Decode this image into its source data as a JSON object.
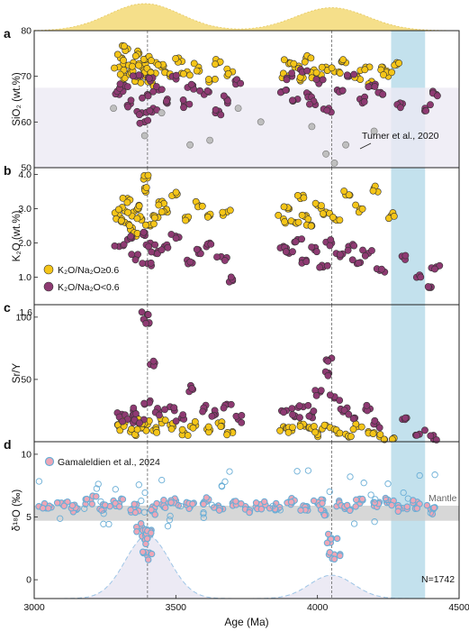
{
  "figure": {
    "x_axis": {
      "label": "Age (Ma)",
      "range": [
        3000,
        4500
      ],
      "ticks": [
        "3000",
        "3500",
        "4000",
        "4500"
      ]
    },
    "reference_lines_age": [
      3400,
      4050
    ],
    "shaded_band_age": [
      4260,
      4380
    ],
    "top_kde": {
      "peaks": [
        {
          "age": 3390,
          "density": 1.0
        },
        {
          "age": 4050,
          "density": 0.85
        }
      ]
    }
  },
  "legend": {
    "high_ratio": "K₂O/Na₂O≥0.6",
    "low_ratio": "K₂O/Na₂O<0.6"
  },
  "colors": {
    "high_ratio": "#f5c518",
    "low_ratio": "#8e3a72",
    "gray_points": "#bfbfbf",
    "band": "#b9dcea",
    "kde_fill": "#f5df8a",
    "zircon_fill": "#eea6b6",
    "zircon_edge": "#6aaed6"
  },
  "chart_data": [
    {
      "type": "scatter",
      "panel_label": "a",
      "ylabel": "SiO₂ (wt.%)",
      "ylim": [
        50,
        80
      ],
      "y_ticks": [
        "50",
        "60",
        "70",
        "80"
      ],
      "annotation": "Turner et al., 2020",
      "series": [
        {
          "name": "K₂O/Na₂O≥0.6",
          "x": [
            3300,
            3310,
            3320,
            3330,
            3340,
            3350,
            3360,
            3370,
            3380,
            3390,
            3400,
            3410,
            3420,
            3430,
            3450,
            3480,
            3510,
            3540,
            3580,
            3620,
            3650,
            3700,
            3880,
            3900,
            3920,
            3940,
            3960,
            3980,
            4000,
            4030,
            4060,
            4100,
            4140,
            4170,
            4200,
            4230,
            4250,
            4280
          ],
          "y": [
            72,
            74,
            70,
            76,
            71,
            73,
            69,
            75,
            72,
            70,
            74,
            71,
            68,
            73,
            72,
            70,
            74,
            71,
            72,
            69,
            73,
            71,
            70,
            73,
            72,
            69,
            74,
            71,
            70,
            72,
            71,
            73,
            70,
            72,
            68,
            72,
            70,
            73
          ]
        },
        {
          "name": "K₂O/Na₂O<0.6",
          "x": [
            3300,
            3320,
            3340,
            3360,
            3380,
            3390,
            3400,
            3410,
            3420,
            3440,
            3470,
            3500,
            3530,
            3560,
            3600,
            3640,
            3680,
            3710,
            3890,
            3910,
            3930,
            3950,
            3970,
            3990,
            4010,
            4040,
            4070,
            4110,
            4150,
            4190,
            4230,
            4300,
            4380,
            4420
          ],
          "y": [
            66,
            68,
            64,
            70,
            62,
            60,
            66,
            69,
            63,
            67,
            65,
            70,
            64,
            68,
            66,
            62,
            65,
            69,
            67,
            70,
            65,
            71,
            66,
            64,
            69,
            63,
            67,
            70,
            65,
            68,
            66,
            64,
            63,
            66
          ]
        },
        {
          "name": "Turner et al., 2020",
          "x": [
            3000,
            3280,
            3390,
            3450,
            3550,
            3620,
            3720,
            3800,
            3980,
            4030,
            4060,
            4100,
            4200
          ],
          "y": [
            59,
            63,
            57,
            62,
            55,
            56,
            63,
            60,
            59,
            53,
            51,
            55,
            58
          ]
        }
      ],
      "shaded_y_range": [
        50,
        67.5
      ]
    },
    {
      "type": "scatter",
      "panel_label": "b",
      "ylabel": "K₂O (wt.%)",
      "ylim": [
        0.2,
        4.2
      ],
      "y_ticks": [
        "1.0",
        "2.0",
        "3.0",
        "4.0"
      ],
      "series": [
        {
          "name": "K₂O/Na₂O≥0.6",
          "x": [
            3300,
            3310,
            3320,
            3330,
            3340,
            3350,
            3360,
            3370,
            3380,
            3390,
            3400,
            3410,
            3420,
            3440,
            3470,
            3500,
            3540,
            3580,
            3620,
            3680,
            3880,
            3900,
            3920,
            3940,
            3960,
            3980,
            4000,
            4030,
            4060,
            4100,
            4150,
            4200,
            4260
          ],
          "y": [
            2.8,
            3.0,
            2.6,
            3.3,
            2.4,
            2.9,
            2.2,
            3.1,
            2.7,
            3.6,
            3.9,
            2.5,
            2.8,
            3.2,
            2.9,
            3.4,
            2.7,
            3.1,
            2.8,
            2.9,
            2.7,
            3.0,
            2.6,
            3.3,
            2.8,
            2.5,
            3.1,
            2.9,
            2.7,
            3.4,
            3.0,
            3.6,
            2.8
          ]
        },
        {
          "name": "K₂O/Na₂O<0.6",
          "x": [
            3300,
            3330,
            3360,
            3390,
            3400,
            3410,
            3430,
            3460,
            3500,
            3540,
            3580,
            3620,
            3660,
            3700,
            3880,
            3900,
            3930,
            3960,
            3990,
            4020,
            4050,
            4080,
            4110,
            4140,
            4180,
            4220,
            4300,
            4350,
            4400,
            4420
          ],
          "y": [
            1.9,
            2.1,
            1.6,
            2.3,
            1.4,
            2.0,
            1.7,
            1.9,
            2.2,
            1.5,
            1.8,
            2.0,
            1.6,
            0.9,
            1.9,
            1.7,
            2.1,
            1.5,
            1.8,
            1.3,
            2.0,
            1.6,
            1.9,
            1.4,
            1.7,
            1.2,
            1.6,
            1.0,
            0.7,
            1.3
          ]
        }
      ]
    },
    {
      "type": "scatter",
      "panel_label": "c",
      "ylabel": "Sr/Y",
      "ylim": [
        0,
        110
      ],
      "y_ticks": [
        "50",
        "100"
      ],
      "extra_y_tick_top": "1.6",
      "series": [
        {
          "name": "K₂O/Na₂O≥0.6",
          "x": [
            3300,
            3320,
            3340,
            3360,
            3380,
            3400,
            3420,
            3450,
            3490,
            3530,
            3570,
            3610,
            3650,
            3700,
            3880,
            3910,
            3940,
            3970,
            4000,
            4030,
            4060,
            4100,
            4140,
            4180,
            4220,
            4270
          ],
          "y": [
            12,
            15,
            8,
            20,
            11,
            14,
            9,
            16,
            12,
            7,
            13,
            10,
            15,
            8,
            12,
            9,
            14,
            11,
            7,
            13,
            10,
            6,
            12,
            8,
            4,
            3
          ]
        },
        {
          "name": "K₂O/Na₂O<0.6",
          "x": [
            3310,
            3330,
            3350,
            3370,
            3390,
            3400,
            3405,
            3410,
            3440,
            3480,
            3520,
            3560,
            3600,
            3640,
            3680,
            3720,
            3890,
            3920,
            3950,
            3980,
            4010,
            4040,
            4050,
            4060,
            4090,
            4130,
            4170,
            4210,
            4300,
            4360,
            4410
          ],
          "y": [
            22,
            18,
            25,
            15,
            30,
            102,
            95,
            62,
            24,
            28,
            19,
            42,
            26,
            22,
            30,
            18,
            25,
            20,
            28,
            22,
            40,
            55,
            67,
            35,
            24,
            19,
            26,
            14,
            18,
            6,
            2
          ]
        }
      ]
    },
    {
      "type": "scatter",
      "panel_label": "d",
      "ylabel": "δ¹⁸O (‰)",
      "ylim": [
        -1.5,
        11
      ],
      "y_ticks": [
        "0",
        "5",
        "10"
      ],
      "mantle_label": "Mantle",
      "mantle_range": [
        4.7,
        5.9
      ],
      "legend_label": "Gamaleldien et al., 2024",
      "count_label": "N=1742",
      "series": [
        {
          "name": "Gamaleldien et al., 2024",
          "x": [
            3000,
            3050,
            3100,
            3150,
            3200,
            3250,
            3300,
            3350,
            3380,
            3390,
            3400,
            3410,
            3420,
            3450,
            3500,
            3550,
            3600,
            3650,
            3700,
            3750,
            3800,
            3850,
            3900,
            3950,
            4000,
            4020,
            4050,
            4060,
            4080,
            4100,
            4150,
            4200,
            4250,
            4300,
            4350,
            4400
          ],
          "y": [
            6.2,
            5.8,
            6.0,
            5.6,
            6.4,
            5.9,
            6.1,
            5.7,
            4.2,
            3.2,
            1.9,
            3.6,
            5.5,
            6.0,
            6.3,
            5.8,
            6.2,
            5.9,
            6.1,
            5.7,
            6.0,
            5.8,
            6.2,
            5.9,
            6.1,
            5.5,
            3.3,
            2.0,
            6.0,
            5.8,
            6.1,
            5.9,
            6.3,
            5.7,
            6.0,
            5.6
          ]
        }
      ],
      "kde_peaks": [
        {
          "age": 3400,
          "density": 1.0
        },
        {
          "age": 4050,
          "density": 0.37
        }
      ]
    }
  ]
}
